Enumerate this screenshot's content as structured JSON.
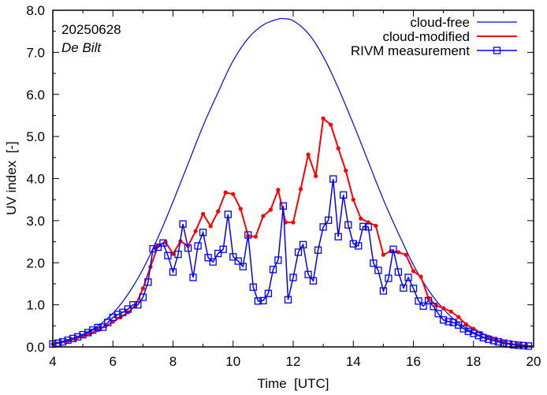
{
  "chart_data": {
    "type": "line",
    "title": "",
    "xlabel": "Time  [UTC]",
    "ylabel": "UV index  [-]",
    "xlim": [
      4,
      20
    ],
    "ylim": [
      0,
      8
    ],
    "xticks": [
      4,
      6,
      8,
      10,
      12,
      14,
      16,
      18,
      20
    ],
    "xtick_labels": [
      "4",
      "6",
      "8",
      "10",
      "12",
      "14",
      "16",
      "18",
      "20"
    ],
    "yticks": [
      0,
      1,
      2,
      3,
      4,
      5,
      6,
      7,
      8
    ],
    "ytick_labels": [
      "0.0",
      "1.0",
      "2.0",
      "3.0",
      "4.0",
      "5.0",
      "6.0",
      "7.0",
      "8.0"
    ],
    "grid": false,
    "legend_position": "top-right",
    "annotations": [
      {
        "text": "20250628",
        "style": "normal",
        "position": "top-left"
      },
      {
        "text": "De Bilt",
        "style": "italic",
        "position": "top-left"
      }
    ],
    "series": [
      {
        "name": "cloud-free",
        "color": "#0000ff",
        "style": "line",
        "peak_value": 7.8,
        "peak_time": 11.67,
        "x": [
          4.0,
          4.5,
          5.0,
          5.5,
          6.0,
          6.5,
          7.0,
          7.5,
          8.0,
          8.5,
          9.0,
          9.5,
          10.0,
          10.5,
          11.0,
          11.5,
          11.67,
          12.0,
          12.5,
          13.0,
          13.5,
          14.0,
          14.5,
          15.0,
          15.5,
          16.0,
          16.5,
          17.0,
          17.5,
          18.0,
          18.5,
          19.0,
          19.5,
          20.0
        ],
        "values": [
          0.08,
          0.17,
          0.3,
          0.5,
          0.8,
          1.25,
          1.85,
          2.6,
          3.45,
          4.35,
          5.25,
          6.05,
          6.8,
          7.33,
          7.65,
          7.79,
          7.8,
          7.75,
          7.45,
          6.9,
          6.15,
          5.3,
          4.4,
          3.5,
          2.7,
          1.95,
          1.35,
          0.9,
          0.57,
          0.34,
          0.19,
          0.1,
          0.05,
          0.02
        ]
      },
      {
        "name": "cloud-modified",
        "color": "#ff0000",
        "style": "line-dot",
        "x": [
          4.0,
          4.25,
          4.5,
          4.75,
          5.0,
          5.25,
          5.5,
          5.75,
          6.0,
          6.25,
          6.5,
          6.75,
          7.0,
          7.25,
          7.5,
          7.75,
          8.0,
          8.25,
          8.5,
          8.75,
          9.0,
          9.25,
          9.5,
          9.75,
          10.0,
          10.25,
          10.5,
          10.75,
          11.0,
          11.25,
          11.5,
          11.75,
          12.0,
          12.25,
          12.5,
          12.75,
          13.0,
          13.25,
          13.5,
          13.75,
          14.0,
          14.25,
          14.5,
          14.75,
          15.0,
          15.25,
          15.5,
          15.75,
          16.0,
          16.25,
          16.5,
          16.75,
          17.0,
          17.25,
          17.5,
          17.75,
          18.0,
          18.25,
          18.5,
          18.75,
          19.0,
          19.25,
          19.5,
          19.75
        ],
        "values": [
          0.07,
          0.1,
          0.14,
          0.19,
          0.25,
          0.32,
          0.4,
          0.49,
          0.6,
          0.7,
          0.82,
          0.98,
          1.39,
          1.9,
          2.4,
          2.49,
          2.21,
          2.51,
          2.4,
          2.75,
          3.16,
          2.87,
          3.22,
          3.67,
          3.63,
          3.28,
          2.64,
          2.62,
          3.11,
          3.26,
          3.73,
          2.96,
          2.96,
          3.75,
          4.57,
          4.06,
          5.43,
          5.28,
          4.72,
          4.19,
          3.5,
          3.05,
          2.96,
          2.88,
          2.19,
          2.28,
          2.25,
          2.19,
          1.8,
          1.67,
          1.16,
          0.99,
          0.92,
          0.84,
          0.71,
          0.54,
          0.43,
          0.33,
          0.24,
          0.17,
          0.11,
          0.07,
          0.05,
          0.03
        ]
      },
      {
        "name": "RIVM measurement",
        "color": "#0000ff",
        "style": "line-square",
        "x": [
          4.0,
          4.17,
          4.33,
          4.5,
          4.67,
          4.83,
          5.0,
          5.17,
          5.33,
          5.5,
          5.67,
          5.83,
          6.0,
          6.17,
          6.33,
          6.5,
          6.67,
          6.83,
          7.0,
          7.17,
          7.33,
          7.5,
          7.67,
          7.83,
          8.0,
          8.17,
          8.33,
          8.5,
          8.67,
          8.83,
          9.0,
          9.17,
          9.33,
          9.5,
          9.67,
          9.83,
          10.0,
          10.17,
          10.33,
          10.5,
          10.67,
          10.83,
          11.0,
          11.17,
          11.33,
          11.5,
          11.67,
          11.83,
          12.0,
          12.17,
          12.33,
          12.5,
          12.67,
          12.83,
          13.0,
          13.17,
          13.33,
          13.5,
          13.67,
          13.83,
          14.0,
          14.17,
          14.33,
          14.5,
          14.67,
          14.83,
          15.0,
          15.17,
          15.33,
          15.5,
          15.67,
          15.83,
          16.0,
          16.17,
          16.33,
          16.5,
          16.67,
          16.83,
          17.0,
          17.17,
          17.33,
          17.5,
          17.67,
          17.83,
          18.0,
          18.17,
          18.33,
          18.5,
          18.67,
          18.83,
          19.0,
          19.17,
          19.33,
          19.5,
          19.67,
          19.83
        ],
        "values": [
          0.07,
          0.09,
          0.12,
          0.16,
          0.2,
          0.24,
          0.29,
          0.34,
          0.4,
          0.46,
          0.47,
          0.58,
          0.7,
          0.77,
          0.82,
          0.9,
          1.0,
          1.0,
          1.18,
          1.54,
          2.33,
          2.37,
          2.47,
          2.17,
          1.78,
          2.2,
          2.92,
          2.35,
          1.65,
          2.4,
          2.72,
          2.12,
          2.02,
          2.22,
          2.32,
          3.15,
          2.14,
          2.04,
          1.91,
          2.66,
          1.42,
          1.09,
          1.1,
          1.27,
          1.84,
          2.06,
          3.35,
          1.12,
          1.65,
          2.25,
          2.43,
          1.72,
          1.57,
          2.3,
          2.85,
          3.01,
          3.99,
          2.62,
          3.61,
          2.9,
          2.45,
          2.4,
          2.86,
          2.85,
          1.99,
          1.82,
          1.33,
          1.63,
          2.32,
          1.78,
          1.4,
          1.65,
          1.39,
          1.09,
          0.97,
          1.1,
          0.96,
          0.79,
          0.64,
          0.6,
          0.58,
          0.52,
          0.43,
          0.37,
          0.32,
          0.27,
          0.22,
          0.18,
          0.15,
          0.12,
          0.09,
          0.07,
          0.05,
          0.04,
          0.03,
          0.02
        ]
      }
    ]
  }
}
